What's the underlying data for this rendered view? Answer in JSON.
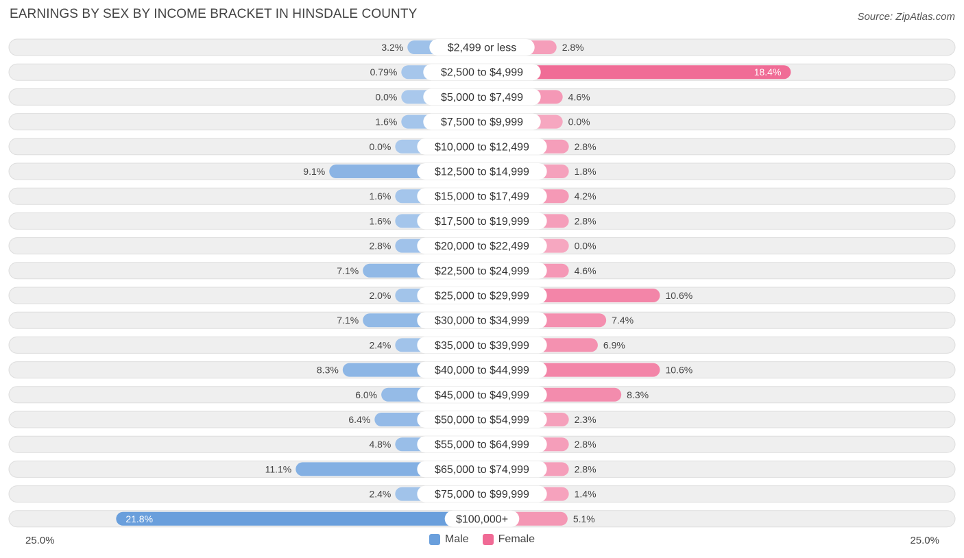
{
  "title": "EARNINGS BY SEX BY INCOME BRACKET IN HINSDALE COUNTY",
  "source": "Source: ZipAtlas.com",
  "axis": {
    "left_label": "25.0%",
    "right_label": "25.0%"
  },
  "legend": {
    "male_label": "Male",
    "female_label": "Female"
  },
  "colors": {
    "male_light": "#a9c8ec",
    "male_strong": "#6a9fdc",
    "female_light": "#f6a7c0",
    "female_strong": "#f06a95",
    "row_bg": "#efefef"
  },
  "chart_data": {
    "type": "bar",
    "orientation": "diverging-horizontal",
    "title": "EARNINGS BY SEX BY INCOME BRACKET IN HINSDALE COUNTY",
    "xlim": [
      -25.0,
      25.0
    ],
    "categories": [
      "$2,499 or less",
      "$2,500 to $4,999",
      "$5,000 to $7,499",
      "$7,500 to $9,999",
      "$10,000 to $12,499",
      "$12,500 to $14,999",
      "$15,000 to $17,499",
      "$17,500 to $19,999",
      "$20,000 to $22,499",
      "$22,500 to $24,999",
      "$25,000 to $29,999",
      "$30,000 to $34,999",
      "$35,000 to $39,999",
      "$40,000 to $44,999",
      "$45,000 to $49,999",
      "$50,000 to $54,999",
      "$55,000 to $64,999",
      "$65,000 to $74,999",
      "$75,000 to $99,999",
      "$100,000+"
    ],
    "series": [
      {
        "name": "Male",
        "values": [
          3.2,
          0.79,
          0.0,
          1.6,
          0.0,
          9.1,
          1.6,
          1.6,
          2.8,
          7.1,
          2.0,
          7.1,
          2.4,
          8.3,
          6.0,
          6.4,
          4.8,
          11.1,
          2.4,
          21.8
        ],
        "labels": [
          "3.2%",
          "0.79%",
          "0.0%",
          "1.6%",
          "0.0%",
          "9.1%",
          "1.6%",
          "1.6%",
          "2.8%",
          "7.1%",
          "2.0%",
          "7.1%",
          "2.4%",
          "8.3%",
          "6.0%",
          "6.4%",
          "4.8%",
          "11.1%",
          "2.4%",
          "21.8%"
        ]
      },
      {
        "name": "Female",
        "values": [
          2.8,
          18.4,
          4.6,
          0.0,
          2.8,
          1.8,
          4.2,
          2.8,
          0.0,
          4.6,
          10.6,
          7.4,
          6.9,
          10.6,
          8.3,
          2.3,
          2.8,
          2.8,
          1.4,
          5.1
        ],
        "labels": [
          "2.8%",
          "18.4%",
          "4.6%",
          "0.0%",
          "2.8%",
          "1.8%",
          "4.2%",
          "2.8%",
          "0.0%",
          "4.6%",
          "10.6%",
          "7.4%",
          "6.9%",
          "10.6%",
          "8.3%",
          "2.3%",
          "2.8%",
          "2.8%",
          "1.4%",
          "5.1%"
        ]
      }
    ]
  }
}
